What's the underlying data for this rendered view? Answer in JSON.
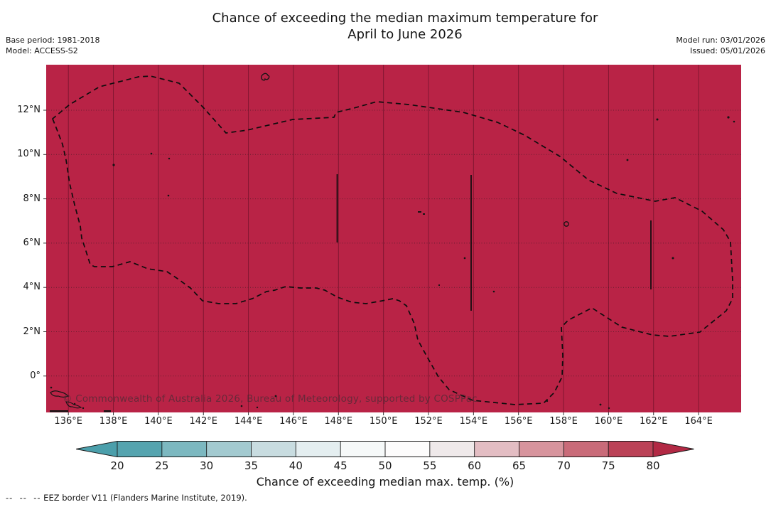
{
  "title": {
    "line1": "Chance of exceeding the median maximum temperature for",
    "line2": "April to June 2026"
  },
  "header": {
    "base_period": "Base period: 1981-2018",
    "model": "Model: ACCESS-S2",
    "model_run": "Model run: 03/01/2026",
    "issued": "Issued: 05/01/2026"
  },
  "map": {
    "watermark": "© Commonwealth of Australia 2026, Bureau of Meteorology, supported by COSPPac",
    "fill_color": "#b92346",
    "x_tick_labels": [
      "136°E",
      "138°E",
      "140°E",
      "142°E",
      "144°E",
      "146°E",
      "148°E",
      "150°E",
      "152°E",
      "154°E",
      "156°E",
      "158°E",
      "160°E",
      "162°E",
      "164°E"
    ],
    "y_tick_labels": [
      "12°N",
      "10°N",
      "8°N",
      "6°N",
      "4°N",
      "2°N",
      "0°"
    ]
  },
  "colorbar": {
    "label": "Chance of exceeding median max. temp. (%)",
    "tick_labels": [
      "20",
      "25",
      "30",
      "35",
      "40",
      "45",
      "50",
      "55",
      "60",
      "65",
      "70",
      "75",
      "80"
    ],
    "segment_colors": [
      "#55a4af",
      "#7cb8c0",
      "#a3cad0",
      "#c8dce0",
      "#e4eef0",
      "#f6f9f9",
      "#fdfcfc",
      "#efe9ea",
      "#e3bdc3",
      "#d7949d",
      "#c96b79",
      "#bb4257"
    ],
    "under_arrow_color": "#4b9fab",
    "over_arrow_color": "#b22944"
  },
  "footnote": {
    "symbol": "--  --  --",
    "text": " EEZ border V11 (Flanders Marine Institute, 2019)."
  },
  "chart_data": {
    "type": "heatmap",
    "title": "Chance of exceeding the median maximum temperature for April to June 2026",
    "base_period": "1981-2018",
    "model": "ACCESS-S2",
    "model_run_date": "03/01/2026",
    "issued_date": "05/01/2026",
    "x_ticks_lon_east": [
      136,
      138,
      140,
      142,
      144,
      146,
      148,
      150,
      152,
      154,
      156,
      158,
      160,
      162,
      164
    ],
    "y_ticks_lat_north": [
      0,
      2,
      4,
      6,
      8,
      10,
      12
    ],
    "xlim_lon_east": [
      135.0,
      165.9
    ],
    "ylim_lat_north": [
      -1.6,
      14.1
    ],
    "grid": {
      "horizontal": "dotted",
      "vertical": "solid-faint"
    },
    "colorbar": {
      "label": "Chance of exceeding median max. temp. (%)",
      "ticks": [
        20,
        25,
        30,
        35,
        40,
        45,
        50,
        55,
        60,
        65,
        70,
        75,
        80
      ],
      "extend": "both",
      "orientation": "horizontal"
    },
    "field_values": "Entire mapped region is shaded in the highest class: >80% chance of exceeding the median maximum temperature",
    "eez_outline": "Single dashed black closed boundary (EEZ) spanning roughly 135.3E-166E and 1.5S-13.5N",
    "eez_internal_meridian_segments": [
      {
        "lon_east": 148,
        "lat_north_range": [
          6,
          9
        ]
      },
      {
        "lon_east": 154,
        "lat_north_range": [
          3,
          9
        ]
      },
      {
        "lon_east": 162,
        "lat_north_range": [
          4,
          7
        ]
      }
    ],
    "legend_note": "EEZ border V11 (Flanders Marine Institute, 2019)."
  }
}
